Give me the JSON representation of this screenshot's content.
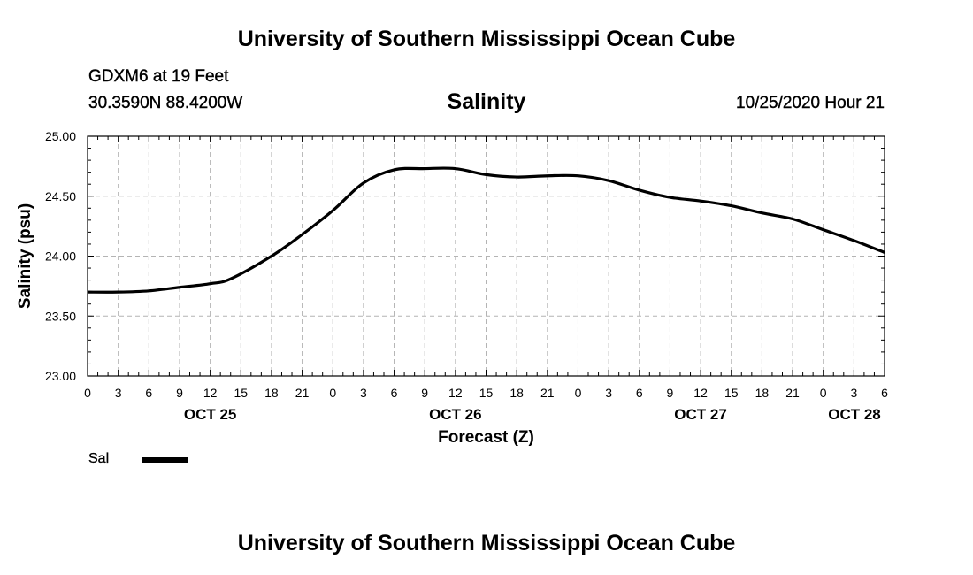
{
  "header": {
    "title": "University of Southern Mississippi Ocean Cube",
    "station": "GDXM6 at 19 Feet",
    "coords": "30.3590N 88.4200W",
    "run_time": "10/25/2020 Hour 21"
  },
  "footer": {
    "title": "University of Southern Mississippi Ocean Cube"
  },
  "legend": {
    "label": "Sal"
  },
  "chart_data": {
    "type": "line",
    "title": "Salinity",
    "xlabel": "Forecast (Z)",
    "ylabel": "Salinity (psu)",
    "ylim": [
      23.0,
      25.0
    ],
    "yticks": [
      "23.00",
      "23.50",
      "24.00",
      "24.50",
      "25.00"
    ],
    "xlim_hours": [
      0,
      78
    ],
    "xtick_labels": [
      "0",
      "3",
      "6",
      "9",
      "12",
      "15",
      "18",
      "21",
      "0",
      "3",
      "6",
      "9",
      "12",
      "15",
      "18",
      "21",
      "0",
      "3",
      "6",
      "9",
      "12",
      "15",
      "18",
      "21",
      "0",
      "3",
      "6"
    ],
    "day_labels": [
      {
        "label": "OCT 25",
        "hour": 12
      },
      {
        "label": "OCT 26",
        "hour": 36
      },
      {
        "label": "OCT 27",
        "hour": 60
      },
      {
        "label": "OCT 28",
        "hour": 78
      }
    ],
    "grid": true,
    "series": [
      {
        "name": "Sal",
        "color": "#000000",
        "x": [
          0,
          3,
          6,
          9,
          12,
          14,
          18,
          21,
          24,
          27,
          30,
          33,
          36,
          39,
          42,
          45,
          48,
          51,
          54,
          57,
          60,
          63,
          66,
          69,
          72,
          75,
          78
        ],
        "values": [
          23.7,
          23.7,
          23.71,
          23.74,
          23.77,
          23.81,
          24.0,
          24.18,
          24.38,
          24.61,
          24.72,
          24.73,
          24.73,
          24.68,
          24.66,
          24.67,
          24.67,
          24.63,
          24.55,
          24.49,
          24.46,
          24.42,
          24.36,
          24.31,
          24.22,
          24.13,
          24.03
        ]
      }
    ]
  }
}
